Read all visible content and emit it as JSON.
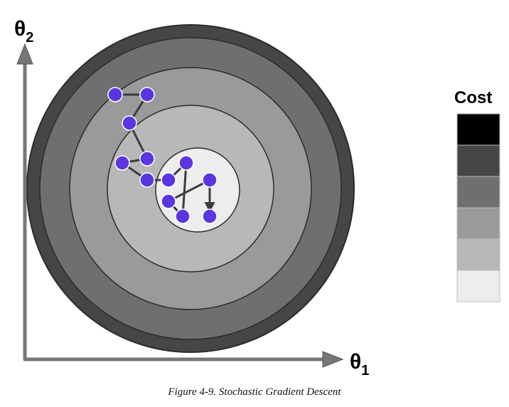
{
  "figure": {
    "y_axis": {
      "symbol": "θ",
      "subscript": "2"
    },
    "x_axis": {
      "symbol": "θ",
      "subscript": "1"
    },
    "contour_colors": [
      "#464646",
      "#6f6f6f",
      "#9a9a9a",
      "#b8b8b8",
      "#ededed"
    ],
    "path_point_color": "#5b35e0",
    "legend": {
      "title": "Cost",
      "swatches": [
        {
          "color": "#000000"
        },
        {
          "color": "#464646"
        },
        {
          "color": "#6f6f6f"
        },
        {
          "color": "#9a9a9a"
        },
        {
          "color": "#b8b8b8"
        },
        {
          "color": "#ededed"
        }
      ]
    }
  },
  "caption": "Figure 4-9. Stochastic Gradient Descent"
}
